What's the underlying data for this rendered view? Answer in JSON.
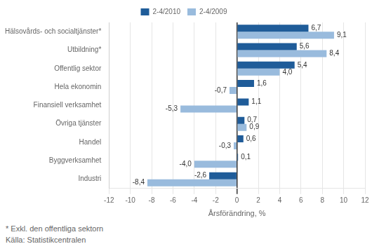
{
  "chart_data": {
    "type": "bar",
    "orientation": "horizontal",
    "categories": [
      "Industri",
      "Byggverksamhet",
      "Handel",
      "Övriga tjänster",
      "Finansiell verksamhet",
      "Hela ekonomin",
      "Offentlig sektor",
      "Utbildning*",
      "Hälsovårds- och socialtjänster*"
    ],
    "series": [
      {
        "name": "2-4/2010",
        "color": "#1f5c99",
        "values": [
          -2.6,
          0.1,
          0.6,
          0.7,
          1.1,
          1.6,
          5.4,
          5.6,
          6.7
        ],
        "value_labels": [
          "-2,6",
          "0,1",
          "0,6",
          "0,7",
          "1,1",
          "1,6",
          "5,4",
          "5,6",
          "6,7"
        ]
      },
      {
        "name": "2-4/2009",
        "color": "#99bbdd",
        "values": [
          -8.4,
          -4.0,
          -0.3,
          0.9,
          -5.3,
          -0.7,
          4.0,
          8.4,
          9.1
        ],
        "value_labels": [
          "-8,4",
          "-4,0",
          "-0,3",
          "0,9",
          "-5,3",
          "-0,7",
          "4,0",
          "8,4",
          "9,1"
        ]
      }
    ],
    "xlabel": "Årsförändring, %",
    "xlim": [
      -12,
      12
    ],
    "xticks": [
      -12,
      -10,
      -8,
      -6,
      -4,
      -2,
      0,
      2,
      4,
      6,
      8,
      10,
      12
    ],
    "grid": true,
    "legend": "upper center",
    "data_labels": true,
    "annotations": [
      "* Exkl. den offentliga sektorn",
      "Källa: Statistikcentralen"
    ]
  }
}
